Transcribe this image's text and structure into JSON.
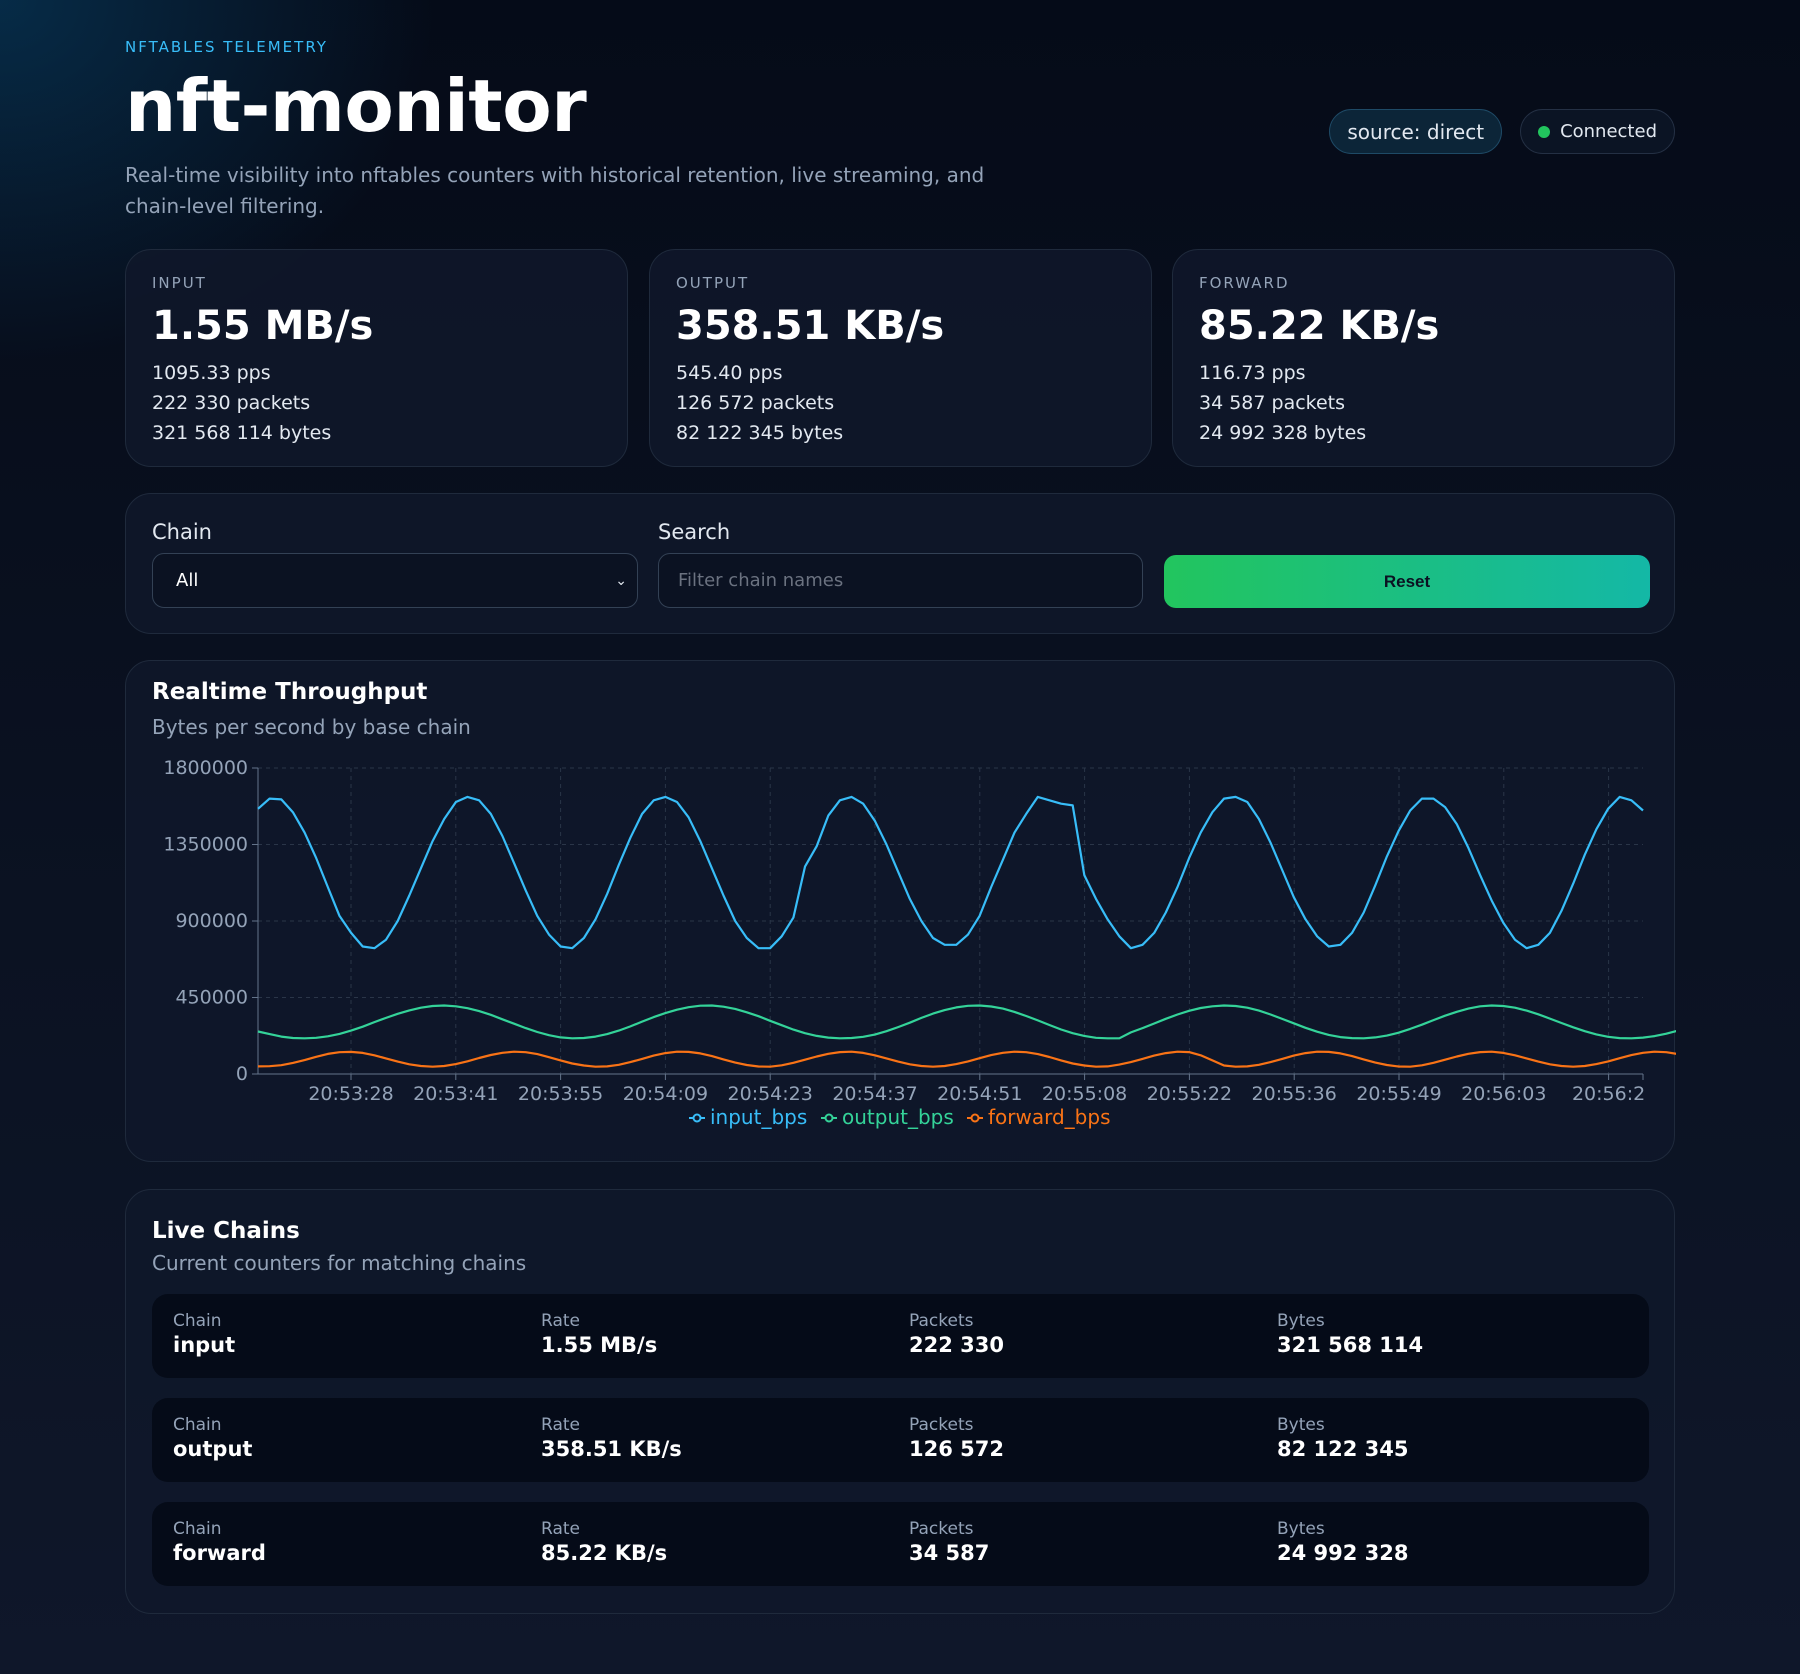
{
  "header": {
    "eyebrow": "NFTABLES TELEMETRY",
    "title": "nft-monitor",
    "subtitle": "Real-time visibility into nftables counters with historical retention, live streaming, and chain-level filtering.",
    "source_badge": "source: direct",
    "status_badge": "Connected",
    "status_color": "#22c55e"
  },
  "stats": [
    {
      "label": "INPUT",
      "value": "1.55 MB/s",
      "pps": "1095.33 pps",
      "packets": "222 330 packets",
      "bytes": "321 568 114 bytes"
    },
    {
      "label": "OUTPUT",
      "value": "358.51 KB/s",
      "pps": "545.40 pps",
      "packets": "126 572 packets",
      "bytes": "82 122 345 bytes"
    },
    {
      "label": "FORWARD",
      "value": "85.22 KB/s",
      "pps": "116.73 pps",
      "packets": "34 587 packets",
      "bytes": "24 992 328 bytes"
    }
  ],
  "filters": {
    "chain_label": "Chain",
    "chain_value": "All",
    "search_label": "Search",
    "search_placeholder": "Filter chain names",
    "reset_label": "Reset"
  },
  "chart_card": {
    "title": "Realtime Throughput",
    "subtitle": "Bytes per second by base chain"
  },
  "chart_data": {
    "type": "line",
    "ylim": [
      0,
      1800000
    ],
    "yticks": [
      "1800000",
      "1350000",
      "900000",
      "450000",
      "0"
    ],
    "xticks": [
      "20:53:28",
      "20:53:41",
      "20:53:55",
      "20:54:09",
      "20:54:23",
      "20:54:37",
      "20:54:51",
      "20:55:08",
      "20:55:22",
      "20:55:36",
      "20:55:49",
      "20:56:03",
      "20:56:2"
    ],
    "grid": true,
    "legend_position": "bottom",
    "series": [
      {
        "name": "input_bps",
        "color": "#38bdf8",
        "values": [
          1560000,
          1620000,
          1615000,
          1540000,
          1420000,
          1270000,
          1100000,
          930000,
          830000,
          750000,
          740000,
          790000,
          900000,
          1050000,
          1210000,
          1370000,
          1500000,
          1600000,
          1630000,
          1610000,
          1530000,
          1400000,
          1240000,
          1080000,
          930000,
          820000,
          750000,
          740000,
          800000,
          910000,
          1060000,
          1230000,
          1390000,
          1530000,
          1610000,
          1630000,
          1600000,
          1510000,
          1370000,
          1210000,
          1050000,
          900000,
          800000,
          740000,
          740000,
          810000,
          920000,
          1220000,
          1340000,
          1520000,
          1610000,
          1630000,
          1590000,
          1490000,
          1350000,
          1190000,
          1030000,
          900000,
          800000,
          760000,
          760000,
          820000,
          930000,
          1100000,
          1260000,
          1420000,
          1530000,
          1630000,
          1610000,
          1590000,
          1580000,
          1170000,
          1030000,
          910000,
          810000,
          740000,
          760000,
          830000,
          950000,
          1100000,
          1270000,
          1420000,
          1540000,
          1620000,
          1630000,
          1600000,
          1500000,
          1360000,
          1200000,
          1040000,
          910000,
          810000,
          750000,
          760000,
          830000,
          950000,
          1110000,
          1280000,
          1430000,
          1550000,
          1620000,
          1620000,
          1570000,
          1470000,
          1330000,
          1170000,
          1020000,
          890000,
          790000,
          740000,
          760000,
          830000,
          960000,
          1120000,
          1290000,
          1440000,
          1560000,
          1630000,
          1610000,
          1550000
        ]
      },
      {
        "name": "output_bps",
        "color": "#34d399",
        "values": [
          250000,
          235000,
          220000,
          212000,
          210000,
          213000,
          222000,
          236000,
          255000,
          278000,
          305000,
          330000,
          354000,
          374000,
          390000,
          400000,
          403000,
          398000,
          387000,
          370000,
          348000,
          322000,
          296000,
          270000,
          247000,
          228000,
          215000,
          210000,
          212000,
          220000,
          235000,
          255000,
          280000,
          308000,
          335000,
          358000,
          378000,
          393000,
          402000,
          403000,
          396000,
          383000,
          363000,
          340000,
          313000,
          287000,
          261000,
          240000,
          224000,
          214000,
          210000,
          212000,
          219000,
          232000,
          252000,
          276000,
          302000,
          330000,
          355000,
          376000,
          392000,
          401000,
          403000,
          397000,
          385000,
          365000,
          341000,
          315000,
          288000,
          262000,
          240000,
          224000,
          213000,
          210000,
          210000,
          245000,
          270000,
          297000,
          325000,
          350000,
          372000,
          388000,
          398000,
          403000,
          400000,
          390000,
          373000,
          350000,
          324000,
          298000,
          272000,
          249000,
          230000,
          217000,
          211000,
          210000,
          215000,
          226000,
          243000,
          265000,
          290000,
          317000,
          343000,
          366000,
          385000,
          398000,
          403000,
          400000,
          390000,
          373000,
          351000,
          326000,
          300000,
          275000,
          252000,
          233000,
          219000,
          211000,
          210000,
          214000,
          223000,
          237000,
          255000,
          278000,
          304000,
          330000,
          352000
        ]
      },
      {
        "name": "forward_bps",
        "color": "#f97316",
        "values": [
          45000,
          46000,
          52000,
          65000,
          82000,
          101000,
          118000,
          128000,
          130000,
          124000,
          110000,
          92000,
          73000,
          57000,
          47000,
          43000,
          47000,
          58000,
          75000,
          94000,
          112000,
          125000,
          131000,
          128000,
          117000,
          99000,
          80000,
          62000,
          50000,
          43000,
          45000,
          54000,
          70000,
          89000,
          108000,
          123000,
          131000,
          130000,
          121000,
          105000,
          86000,
          67000,
          53000,
          44000,
          43000,
          51000,
          66000,
          84000,
          103000,
          119000,
          129000,
          131000,
          124000,
          110000,
          92000,
          73000,
          57000,
          47000,
          43000,
          47000,
          58000,
          74000,
          93000,
          111000,
          125000,
          131000,
          128000,
          117000,
          100000,
          80000,
          62000,
          50000,
          43000,
          45000,
          55000,
          70000,
          89000,
          108000,
          123000,
          131000,
          129000,
          110000,
          80000,
          50000,
          43000,
          45000,
          54000,
          70000,
          89000,
          108000,
          123000,
          131000,
          130000,
          121000,
          105000,
          86000,
          67000,
          53000,
          44000,
          43000,
          51000,
          66000,
          84000,
          103000,
          119000,
          129000,
          131000,
          124000,
          110000,
          92000,
          73000,
          57000,
          47000,
          43000,
          47000,
          58000,
          74000,
          93000,
          111000,
          125000,
          131000,
          128000,
          117000,
          100000,
          80000
        ]
      }
    ]
  },
  "chains_card": {
    "title": "Live Chains",
    "subtitle": "Current counters for matching chains",
    "rows": [
      {
        "chain_label": "Chain",
        "chain": "input",
        "rate_label": "Rate",
        "rate": "1.55 MB/s",
        "packets_label": "Packets",
        "packets": "222 330",
        "bytes_label": "Bytes",
        "bytes": "321 568 114"
      },
      {
        "chain_label": "Chain",
        "chain": "output",
        "rate_label": "Rate",
        "rate": "358.51 KB/s",
        "packets_label": "Packets",
        "packets": "126 572",
        "bytes_label": "Bytes",
        "bytes": "82 122 345"
      },
      {
        "chain_label": "Chain",
        "chain": "forward",
        "rate_label": "Rate",
        "rate": "85.22 KB/s",
        "packets_label": "Packets",
        "packets": "34 587",
        "bytes_label": "Bytes",
        "bytes": "24 992 328"
      }
    ]
  }
}
